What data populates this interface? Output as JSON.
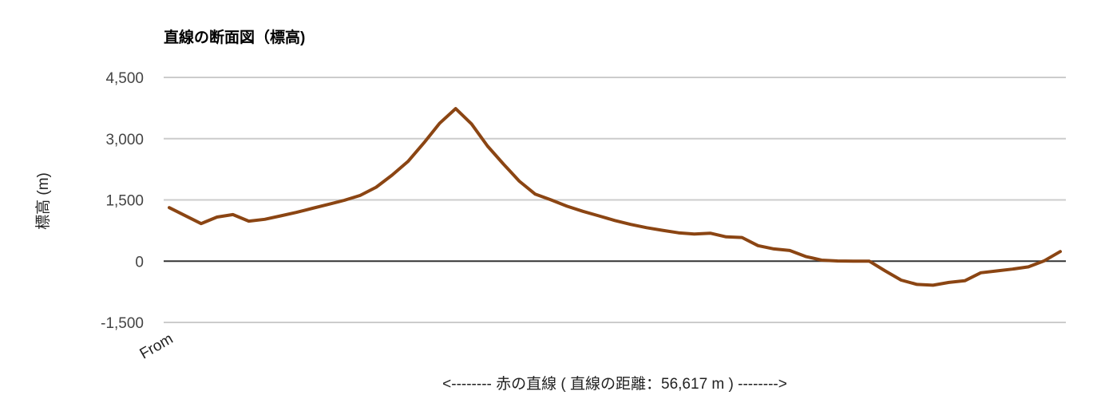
{
  "chart_data": {
    "type": "line",
    "title": "直線の断面図（標高)",
    "y_label": "標高 (m)",
    "x_label": "<-------- 赤の直線 ( 直線の距離：56,617 m ) -------->",
    "categories": [
      "From",
      null,
      null,
      null,
      null,
      null,
      null,
      null,
      null,
      null,
      null,
      null,
      null,
      null,
      null,
      null,
      null,
      null,
      null,
      null,
      null,
      null,
      null,
      null,
      null,
      null,
      null,
      null,
      null,
      null,
      null,
      null,
      null,
      null,
      null,
      null,
      null,
      null,
      null,
      null,
      null,
      null,
      null,
      null,
      null,
      null,
      null,
      null,
      null,
      null,
      null,
      null,
      null,
      null,
      null,
      null,
      null
    ],
    "series": [
      {
        "name": "標高",
        "color": "#8b4513",
        "values": [
          1310,
          1115,
          920,
          1080,
          1140,
          980,
          1025,
          1110,
          1195,
          1295,
          1390,
          1490,
          1610,
          1810,
          2105,
          2440,
          2895,
          3380,
          3735,
          3360,
          2820,
          2380,
          1960,
          1640,
          1500,
          1345,
          1220,
          1110,
          995,
          900,
          820,
          755,
          695,
          665,
          685,
          595,
          580,
          380,
          300,
          260,
          115,
          25,
          5,
          0,
          0,
          -240,
          -465,
          -570,
          -590,
          -520,
          -480,
          -285,
          -240,
          -195,
          -140,
          10,
          235
        ]
      }
    ],
    "ylim": [
      -1500,
      4500
    ],
    "yticks": [
      {
        "value": -1500,
        "label": "-1,500"
      },
      0,
      {
        "value": 1500,
        "label": "1,500"
      },
      {
        "value": 3000,
        "label": "3,000"
      },
      {
        "value": 4500,
        "label": "4,500"
      }
    ],
    "grid": true,
    "zero_line_color": "#333333"
  }
}
